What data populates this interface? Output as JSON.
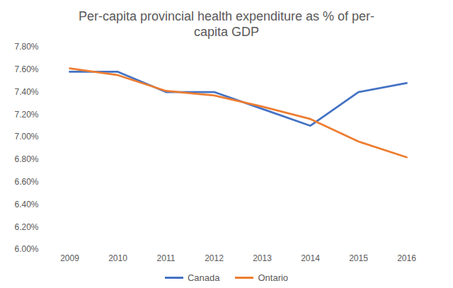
{
  "chart_data": {
    "type": "line",
    "title": "Per-capita provincial health expenditure as % of per-capita GDP",
    "categories": [
      "2009",
      "2010",
      "2011",
      "2012",
      "2013",
      "2014",
      "2015",
      "2016"
    ],
    "series": [
      {
        "name": "Canada",
        "color": "#4472c4",
        "values": [
          7.58,
          7.58,
          7.4,
          7.4,
          7.25,
          7.1,
          7.4,
          7.48
        ]
      },
      {
        "name": "Ontario",
        "color": "#ed7d31",
        "values": [
          7.61,
          7.55,
          7.41,
          7.37,
          7.27,
          7.16,
          6.96,
          6.82
        ]
      }
    ],
    "ylim": [
      6,
      7.8
    ],
    "yticks": [
      {
        "value": 6,
        "label": "6.00%"
      },
      {
        "value": 6.2,
        "label": "6.20%"
      },
      {
        "value": 6.4,
        "label": "6.40%"
      },
      {
        "value": 6.6,
        "label": "6.60%"
      },
      {
        "value": 6.8,
        "label": "6.80%"
      },
      {
        "value": 7,
        "label": "7.00%"
      },
      {
        "value": 7.2,
        "label": "7.20%"
      },
      {
        "value": 7.4,
        "label": "7.40%"
      },
      {
        "value": 7.6,
        "label": "7.60%"
      },
      {
        "value": 7.8,
        "label": "7.80%"
      }
    ],
    "grid": false,
    "legend": "bottom"
  }
}
